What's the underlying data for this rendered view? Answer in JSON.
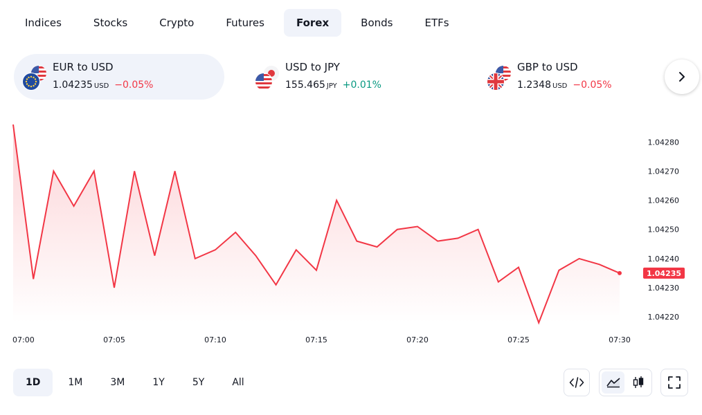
{
  "tabs": [
    {
      "label": "Indices",
      "active": false
    },
    {
      "label": "Stocks",
      "active": false
    },
    {
      "label": "Crypto",
      "active": false
    },
    {
      "label": "Futures",
      "active": false
    },
    {
      "label": "Forex",
      "active": true
    },
    {
      "label": "Bonds",
      "active": false
    },
    {
      "label": "ETFs",
      "active": false
    }
  ],
  "tickers": [
    {
      "name": "EUR to USD",
      "price": "1.04235",
      "currency": "USD",
      "change": "−0.05%",
      "direction": "down",
      "flags": [
        "us-flag",
        "eu-flag"
      ],
      "active": true
    },
    {
      "name": "USD to JPY",
      "price": "155.465",
      "currency": "JPY",
      "change": "+0.01%",
      "direction": "up",
      "flags": [
        "jp-flag",
        "us-flag"
      ],
      "active": false
    },
    {
      "name": "GBP to USD",
      "price": "1.2348",
      "currency": "USD",
      "change": "−0.05%",
      "direction": "down",
      "flags": [
        "us-flag",
        "gb-flag"
      ],
      "active": false
    }
  ],
  "next_icon": "chevron-right-icon",
  "ranges": [
    {
      "label": "1D",
      "active": true
    },
    {
      "label": "1M",
      "active": false
    },
    {
      "label": "3M",
      "active": false
    },
    {
      "label": "1Y",
      "active": false
    },
    {
      "label": "5Y",
      "active": false
    },
    {
      "label": "All",
      "active": false
    }
  ],
  "tools": {
    "embed_icon": "code-icon",
    "area_icon": "area-chart-icon",
    "candles_icon": "candlestick-icon",
    "fullscreen_icon": "fullscreen-icon"
  },
  "colors": {
    "line": "#f23645",
    "negative": "#f23645",
    "positive": "#089981",
    "active_bg": "#f0f3fa"
  },
  "chart_data": {
    "type": "area",
    "x": [
      "07:00",
      "07:01",
      "07:02",
      "07:03",
      "07:04",
      "07:05",
      "07:06",
      "07:07",
      "07:08",
      "07:09",
      "07:10",
      "07:11",
      "07:12",
      "07:13",
      "07:14",
      "07:15",
      "07:16",
      "07:17",
      "07:18",
      "07:19",
      "07:20",
      "07:21",
      "07:22",
      "07:23",
      "07:24",
      "07:25",
      "07:26",
      "07:27",
      "07:28",
      "07:29",
      "07:30"
    ],
    "values": [
      1.04286,
      1.04233,
      1.0427,
      1.04258,
      1.0427,
      1.0423,
      1.0427,
      1.04241,
      1.0427,
      1.0424,
      1.04243,
      1.04249,
      1.04241,
      1.04231,
      1.04243,
      1.04236,
      1.0426,
      1.04246,
      1.04244,
      1.0425,
      1.04251,
      1.04246,
      1.04247,
      1.0425,
      1.04232,
      1.04237,
      1.04218,
      1.04236,
      1.0424,
      1.04238,
      1.04235
    ],
    "x_ticks": [
      "07:00",
      "07:05",
      "07:10",
      "07:15",
      "07:20",
      "07:25",
      "07:30"
    ],
    "y_ticks": [
      "1.04280",
      "1.04270",
      "1.04260",
      "1.04250",
      "1.04240",
      "1.04230",
      "1.04220"
    ],
    "ylim": [
      1.04216,
      1.04286
    ],
    "last_value_label": "1.04235",
    "grid": false,
    "y_axis_side": "right"
  }
}
